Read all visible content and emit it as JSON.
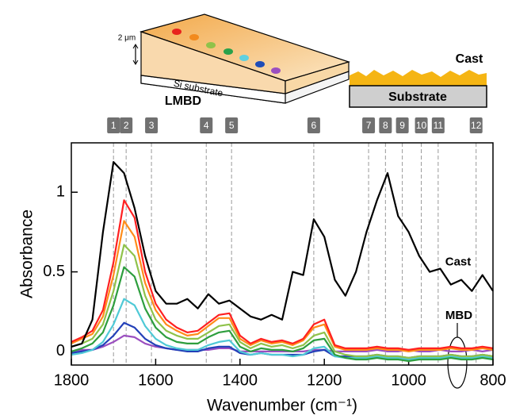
{
  "chart_data": {
    "type": "line",
    "xlabel": "Wavenumber (cm⁻¹)",
    "ylabel": "Absorbance",
    "xlim": [
      1800,
      800
    ],
    "ylim": [
      -0.085,
      1.31
    ],
    "xticks": [
      1800,
      1600,
      1400,
      1200,
      1000,
      800
    ],
    "yticks": [
      0,
      0.5,
      1
    ],
    "x": [
      1800,
      1775,
      1750,
      1725,
      1700,
      1675,
      1650,
      1625,
      1600,
      1575,
      1550,
      1525,
      1500,
      1475,
      1450,
      1425,
      1400,
      1375,
      1350,
      1325,
      1300,
      1275,
      1250,
      1225,
      1200,
      1175,
      1150,
      1125,
      1100,
      1075,
      1050,
      1025,
      1000,
      975,
      950,
      925,
      900,
      875,
      850,
      825,
      800
    ],
    "series": [
      {
        "color": "#9b4fc0",
        "values": [
          0.0,
          0.01,
          0.01,
          0.03,
          0.06,
          0.1,
          0.09,
          0.05,
          0.03,
          0.02,
          0.01,
          0.01,
          0.01,
          0.01,
          0.02,
          0.02,
          0.0,
          0.0,
          0.0,
          0.0,
          0.0,
          0.0,
          0.0,
          0.01,
          0.01,
          0.0,
          0.0,
          0.0,
          0.0,
          0.01,
          0.0,
          0.0,
          0.01,
          0.0,
          0.0,
          0.01,
          0.0,
          0.0,
          0.01,
          0.0,
          0.01
        ]
      },
      {
        "color": "#2340b8",
        "values": [
          -0.01,
          0.0,
          0.01,
          0.04,
          0.1,
          0.18,
          0.15,
          0.08,
          0.04,
          0.02,
          0.01,
          0.0,
          0.0,
          0.02,
          0.03,
          0.03,
          -0.01,
          -0.02,
          -0.01,
          -0.02,
          -0.02,
          -0.02,
          -0.02,
          0.0,
          0.01,
          -0.03,
          -0.03,
          -0.03,
          -0.03,
          -0.02,
          -0.03,
          -0.03,
          -0.04,
          -0.03,
          -0.03,
          -0.03,
          -0.02,
          -0.03,
          -0.03,
          -0.02,
          -0.03
        ]
      },
      {
        "color": "#4fc9d6",
        "values": [
          -0.02,
          -0.01,
          0.01,
          0.06,
          0.17,
          0.33,
          0.29,
          0.16,
          0.08,
          0.04,
          0.02,
          0.01,
          0.01,
          0.04,
          0.06,
          0.07,
          0.0,
          -0.02,
          -0.01,
          -0.02,
          -0.02,
          -0.03,
          -0.02,
          0.02,
          0.03,
          -0.03,
          -0.04,
          -0.04,
          -0.04,
          -0.03,
          -0.04,
          -0.04,
          -0.05,
          -0.04,
          -0.04,
          -0.04,
          -0.03,
          -0.04,
          -0.04,
          -0.03,
          -0.04
        ]
      },
      {
        "color": "#2e9e3e",
        "values": [
          0.0,
          0.02,
          0.05,
          0.12,
          0.29,
          0.53,
          0.47,
          0.27,
          0.15,
          0.09,
          0.06,
          0.05,
          0.05,
          0.09,
          0.12,
          0.13,
          0.03,
          0.0,
          0.02,
          0.01,
          0.01,
          0.0,
          0.02,
          0.07,
          0.08,
          -0.02,
          -0.04,
          -0.05,
          -0.05,
          -0.04,
          -0.05,
          -0.05,
          -0.06,
          -0.05,
          -0.05,
          -0.05,
          -0.04,
          -0.05,
          -0.05,
          -0.04,
          -0.05
        ]
      },
      {
        "color": "#8fc24a",
        "values": [
          0.03,
          0.05,
          0.08,
          0.17,
          0.38,
          0.67,
          0.6,
          0.35,
          0.2,
          0.13,
          0.1,
          0.08,
          0.08,
          0.12,
          0.16,
          0.17,
          0.06,
          0.02,
          0.05,
          0.03,
          0.04,
          0.02,
          0.04,
          0.1,
          0.12,
          0.0,
          -0.02,
          -0.03,
          -0.03,
          -0.02,
          -0.03,
          -0.03,
          -0.04,
          -0.03,
          -0.03,
          -0.03,
          -0.02,
          -0.03,
          -0.03,
          -0.02,
          -0.03
        ]
      },
      {
        "color": "#ff8c1a",
        "values": [
          0.05,
          0.08,
          0.11,
          0.22,
          0.48,
          0.82,
          0.72,
          0.43,
          0.26,
          0.17,
          0.13,
          0.1,
          0.11,
          0.16,
          0.21,
          0.21,
          0.08,
          0.04,
          0.07,
          0.05,
          0.06,
          0.04,
          0.07,
          0.15,
          0.17,
          0.03,
          0.01,
          0.01,
          0.01,
          0.02,
          0.01,
          0.01,
          0.0,
          0.01,
          0.01,
          0.01,
          0.02,
          0.01,
          0.01,
          0.02,
          0.01
        ]
      },
      {
        "color": "#ff2020",
        "values": [
          0.06,
          0.09,
          0.13,
          0.26,
          0.56,
          0.95,
          0.84,
          0.5,
          0.3,
          0.2,
          0.15,
          0.12,
          0.13,
          0.18,
          0.23,
          0.24,
          0.1,
          0.05,
          0.08,
          0.06,
          0.07,
          0.05,
          0.08,
          0.17,
          0.2,
          0.04,
          0.02,
          0.02,
          0.02,
          0.03,
          0.02,
          0.02,
          0.01,
          0.02,
          0.02,
          0.02,
          0.03,
          0.02,
          0.02,
          0.03,
          0.02
        ]
      },
      {
        "name": "Cast",
        "color": "#000000",
        "values": [
          0.03,
          0.05,
          0.2,
          0.75,
          1.19,
          1.12,
          0.9,
          0.6,
          0.38,
          0.3,
          0.3,
          0.33,
          0.27,
          0.36,
          0.3,
          0.32,
          0.27,
          0.22,
          0.2,
          0.23,
          0.2,
          0.5,
          0.48,
          0.83,
          0.72,
          0.45,
          0.35,
          0.5,
          0.75,
          0.95,
          1.12,
          0.85,
          0.75,
          0.6,
          0.5,
          0.52,
          0.42,
          0.45,
          0.38,
          0.48,
          0.38
        ]
      }
    ],
    "peak_markers": {
      "labels": [
        1,
        2,
        3,
        4,
        5,
        6,
        7,
        8,
        9,
        10,
        11,
        12
      ],
      "positions": [
        1700,
        1670,
        1610,
        1480,
        1420,
        1225,
        1095,
        1055,
        1015,
        970,
        930,
        840
      ]
    },
    "annotations": {
      "mbd_label": "MBD",
      "lmbd_inset": {
        "title": "LMBD",
        "thickness": "2 μm",
        "substrate": "Si substrate"
      },
      "cast_inset": {
        "title": "Cast",
        "substrate": "Substrate"
      }
    }
  }
}
